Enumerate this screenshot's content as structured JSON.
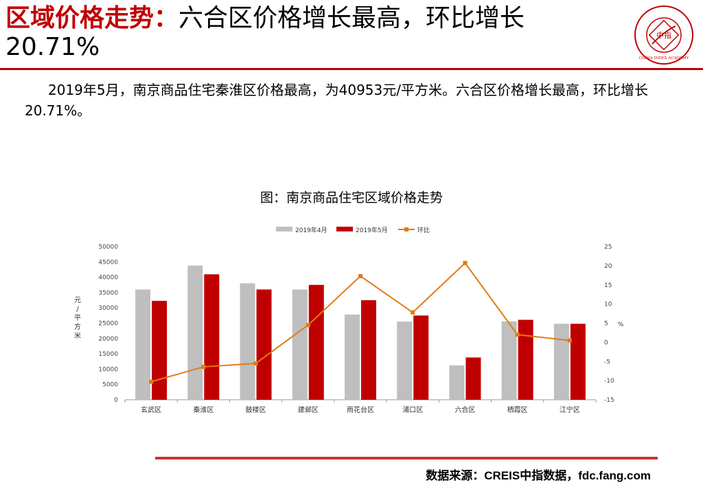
{
  "header": {
    "title_highlight": "区域价格走势：",
    "title_rest": "六合区价格增长最高，环比增长",
    "title_line2": "20.71%",
    "logo_text": "中指",
    "logo_english": "CHINA INDEX ACADEMY"
  },
  "body": {
    "paragraph": "2019年5月，南京商品住宅秦淮区价格最高，为40953元/平方米。六合区价格增长最高，环比增长20.71%。"
  },
  "footer": {
    "source": "数据来源：CREIS中指数据，fdc.fang.com"
  },
  "colors": {
    "accent": "#c00000",
    "april": "#bfbfbf",
    "may": "#c00000",
    "mom": "#e07b14"
  },
  "chart_data": {
    "type": "bar",
    "title": "图：南京商品住宅区域价格走势",
    "categories": [
      "玄武区",
      "秦淮区",
      "鼓楼区",
      "建邺区",
      "雨花台区",
      "浦口区",
      "六合区",
      "栖霞区",
      "江宁区"
    ],
    "series": [
      {
        "name": "2019年4月",
        "type": "bar",
        "axis": "left",
        "values": [
          36000,
          43800,
          38000,
          36000,
          27800,
          25500,
          11200,
          25600,
          24800
        ]
      },
      {
        "name": "2019年5月",
        "type": "bar",
        "axis": "left",
        "values": [
          32300,
          40953,
          36000,
          37500,
          32500,
          27500,
          13800,
          26100,
          24800
        ]
      },
      {
        "name": "环比",
        "type": "line",
        "axis": "right",
        "values": [
          -10.3,
          -6.4,
          -5.5,
          4.5,
          17.3,
          7.8,
          20.71,
          2.0,
          0.5
        ]
      }
    ],
    "ylabel": "元/平方米",
    "y2label": "%",
    "ylim": [
      0,
      50000
    ],
    "y_ticks": [
      0,
      5000,
      10000,
      15000,
      20000,
      25000,
      30000,
      35000,
      40000,
      45000,
      50000
    ],
    "y2lim": [
      -15,
      25
    ],
    "y2_ticks": [
      -15,
      -10,
      -5,
      0,
      5,
      10,
      15,
      20,
      25
    ],
    "legend_position": "top",
    "grid": false
  }
}
